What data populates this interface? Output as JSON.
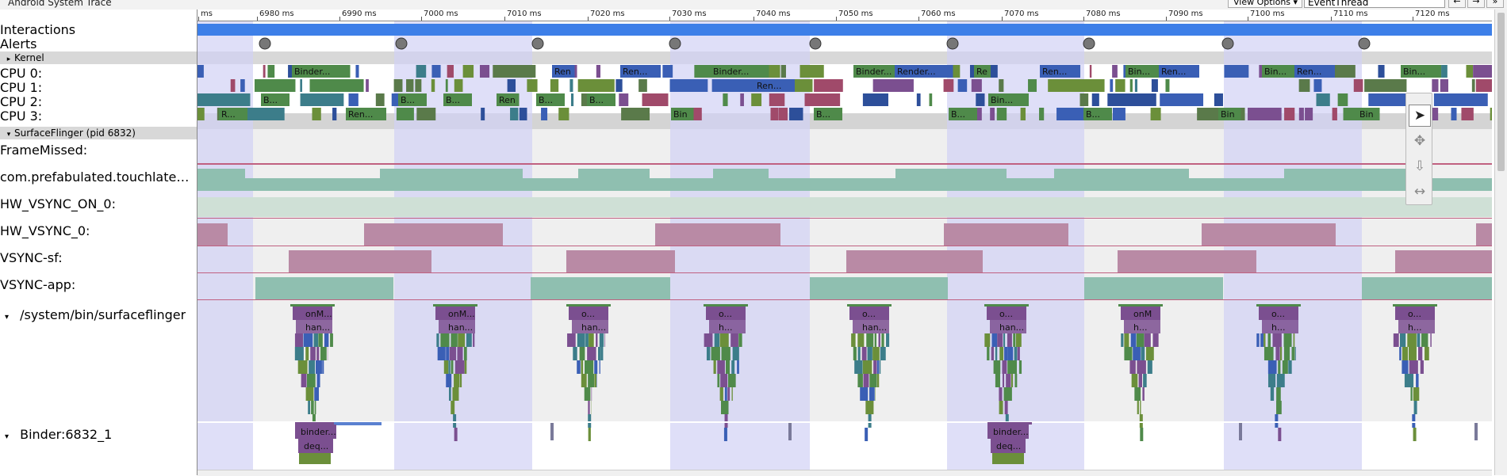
{
  "window": {
    "title": "Android System Trace"
  },
  "toolbar": {
    "view_options_label": "View Options ▾",
    "search_value": "EventThread",
    "prev_label": "←",
    "next_label": "→",
    "more_label": "»"
  },
  "ruler": {
    "labels": [
      "ms",
      "6980 ms",
      "6990 ms",
      "7000 ms",
      "7010 ms",
      "7020 ms",
      "7030 ms",
      "7040 ms",
      "7050 ms",
      "7060 ms",
      "7070 ms",
      "7080 ms",
      "7090 ms",
      "7100 ms",
      "7110 ms",
      "7120 ms"
    ]
  },
  "tracks": {
    "interactions": "Interactions",
    "alerts": "Alerts",
    "kernel_section": "Kernel",
    "cpu0": "CPU 0:",
    "cpu1": "CPU 1:",
    "cpu2": "CPU 2:",
    "cpu3": "CPU 3:",
    "sf_section": "SurfaceFlinger (pid 6832)",
    "frame_missed": "FrameMissed:",
    "touchlatency": "com.prefabulated.touchlatenc...",
    "hw_vsync_on": "HW_VSYNC_ON_0:",
    "hw_vsync": "HW_VSYNC_0:",
    "vsync_sf": "VSYNC-sf:",
    "vsync_app": "VSYNC-app:",
    "sf_process": "/system/bin/surfaceflinger",
    "binder_thread": "Binder:6832_1"
  },
  "cpu_labels": {
    "cpu0": [
      "Binder...",
      "Ren",
      "Ren...",
      "Binder...",
      "Binder...",
      "Render...",
      "Re",
      "Ren...",
      "Bin...",
      "Ren...",
      "Bin...",
      "Ren...",
      "Bin..."
    ],
    "cpu1": [
      "Ren..."
    ],
    "cpu2": [
      "B...",
      "B...",
      "B...",
      "Ren",
      "B...",
      "B...",
      "Bin..."
    ],
    "cpu3": [
      "R...",
      "Ren...",
      "Bin",
      "B...",
      "B...",
      "B...",
      "Bin",
      "Bin"
    ]
  },
  "sf_slices": {
    "top": [
      "onM...",
      "onM...",
      "o...",
      "o...",
      "o...",
      "o...",
      "onM",
      "o...",
      "o..."
    ],
    "second": [
      "han...",
      "han...",
      "han...",
      "h...",
      "han...",
      "han...",
      "h...",
      "h...",
      "h..."
    ]
  },
  "binder_slices": [
    "binder...",
    "deq...",
    "binder...",
    "deq..."
  ],
  "tools": {
    "select": "select-tool",
    "pan": "pan-tool",
    "zoom": "zoom-tool",
    "timing": "timing-tool"
  },
  "colors": {
    "interaction_bar": "#3d7fe8",
    "highlight": "#d2d2f5",
    "green": "#4f8a4a",
    "blue": "#3a5fb5",
    "purple": "#7b4f90",
    "teal": "#8fbfb0",
    "mauve": "#b98aa5"
  }
}
